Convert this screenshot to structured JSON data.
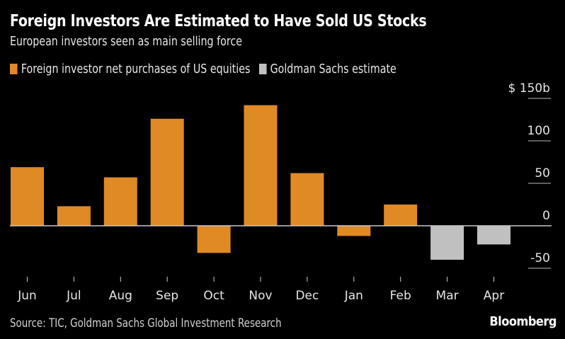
{
  "chart_data": {
    "type": "bar",
    "title": "Foreign Investors Are Estimated to Have Sold US Stocks",
    "subtitle": "European investors seen as main selling force",
    "categories": [
      "Jun",
      "Jul",
      "Aug",
      "Sep",
      "Oct",
      "Nov",
      "Dec",
      "Jan",
      "Feb",
      "Mar",
      "Apr"
    ],
    "series": [
      {
        "name": "Foreign investor net purchases of US equities",
        "color": "#E08A25",
        "values": [
          69,
          23,
          57,
          126,
          -32,
          142,
          62,
          -12,
          25,
          null,
          null
        ]
      },
      {
        "name": "Goldman Sachs estimate",
        "color": "#C0C0C0",
        "values": [
          null,
          null,
          null,
          null,
          null,
          null,
          null,
          null,
          null,
          -40,
          -22
        ]
      }
    ],
    "xlabel": "",
    "ylabel": "$ billions",
    "ylim": [
      -55,
      150
    ],
    "yticks": [
      150,
      100,
      50,
      0,
      -50
    ],
    "ytick_labels": [
      "$ 150b",
      "100",
      "50",
      "0",
      "-50"
    ],
    "grid": false,
    "legend_position": "top-left",
    "source": "Source: TIC, Goldman Sachs Global Investment Research",
    "brand": "Bloomberg"
  }
}
